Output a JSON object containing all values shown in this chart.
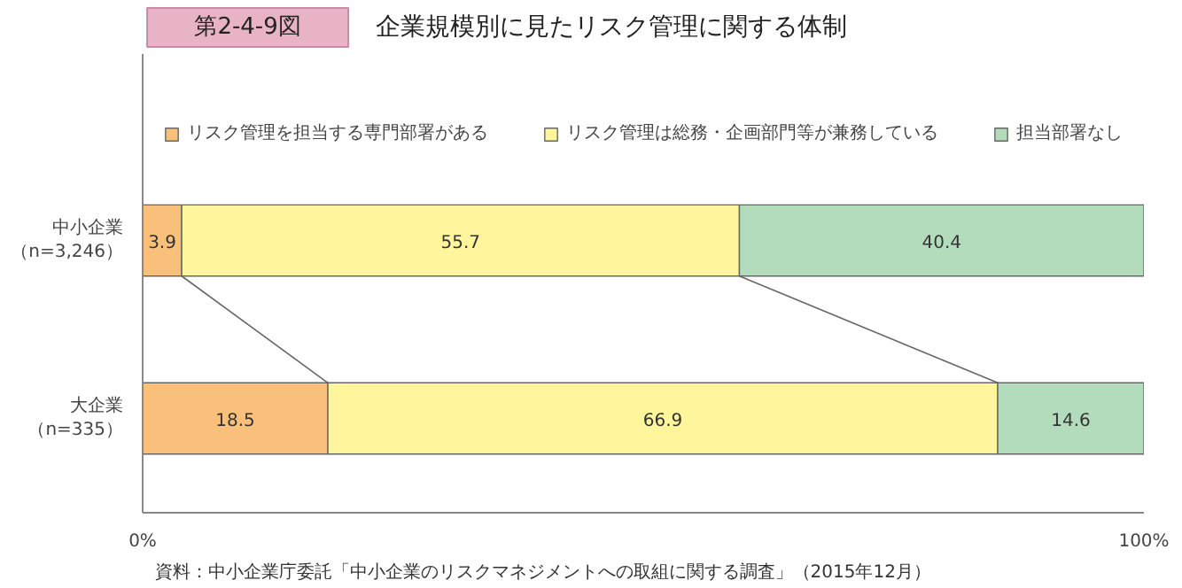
{
  "chart_data": {
    "type": "bar",
    "orientation": "horizontal",
    "stacked": true,
    "title": "企業規模別に見たリスク管理に関する体制",
    "categories": [
      "中小企業（n=3,246）",
      "大企業（n=335）"
    ],
    "series": [
      {
        "name": "リスク管理を担当する専門部署がある",
        "color": "#f8c07a",
        "values": [
          3.9,
          18.5
        ]
      },
      {
        "name": "リスク管理は総務・企画部門等が兼務している",
        "color": "#fff59c",
        "values": [
          55.7,
          66.9
        ]
      },
      {
        "name": "担当部署なし",
        "color": "#b3dcbc",
        "values": [
          40.4,
          14.6
        ]
      }
    ],
    "xlim": [
      0,
      100
    ],
    "xticks": [
      {
        "value": 0,
        "label": "0%"
      },
      {
        "value": 100,
        "label": "100%"
      }
    ],
    "data_labels": true,
    "legend": "top",
    "annotations": [
      "第2-4-9図",
      "資料：中小企業庁委託「中小企業のリスクマネジメントへの取組に関する調査」（2015年12月）"
    ]
  }
}
